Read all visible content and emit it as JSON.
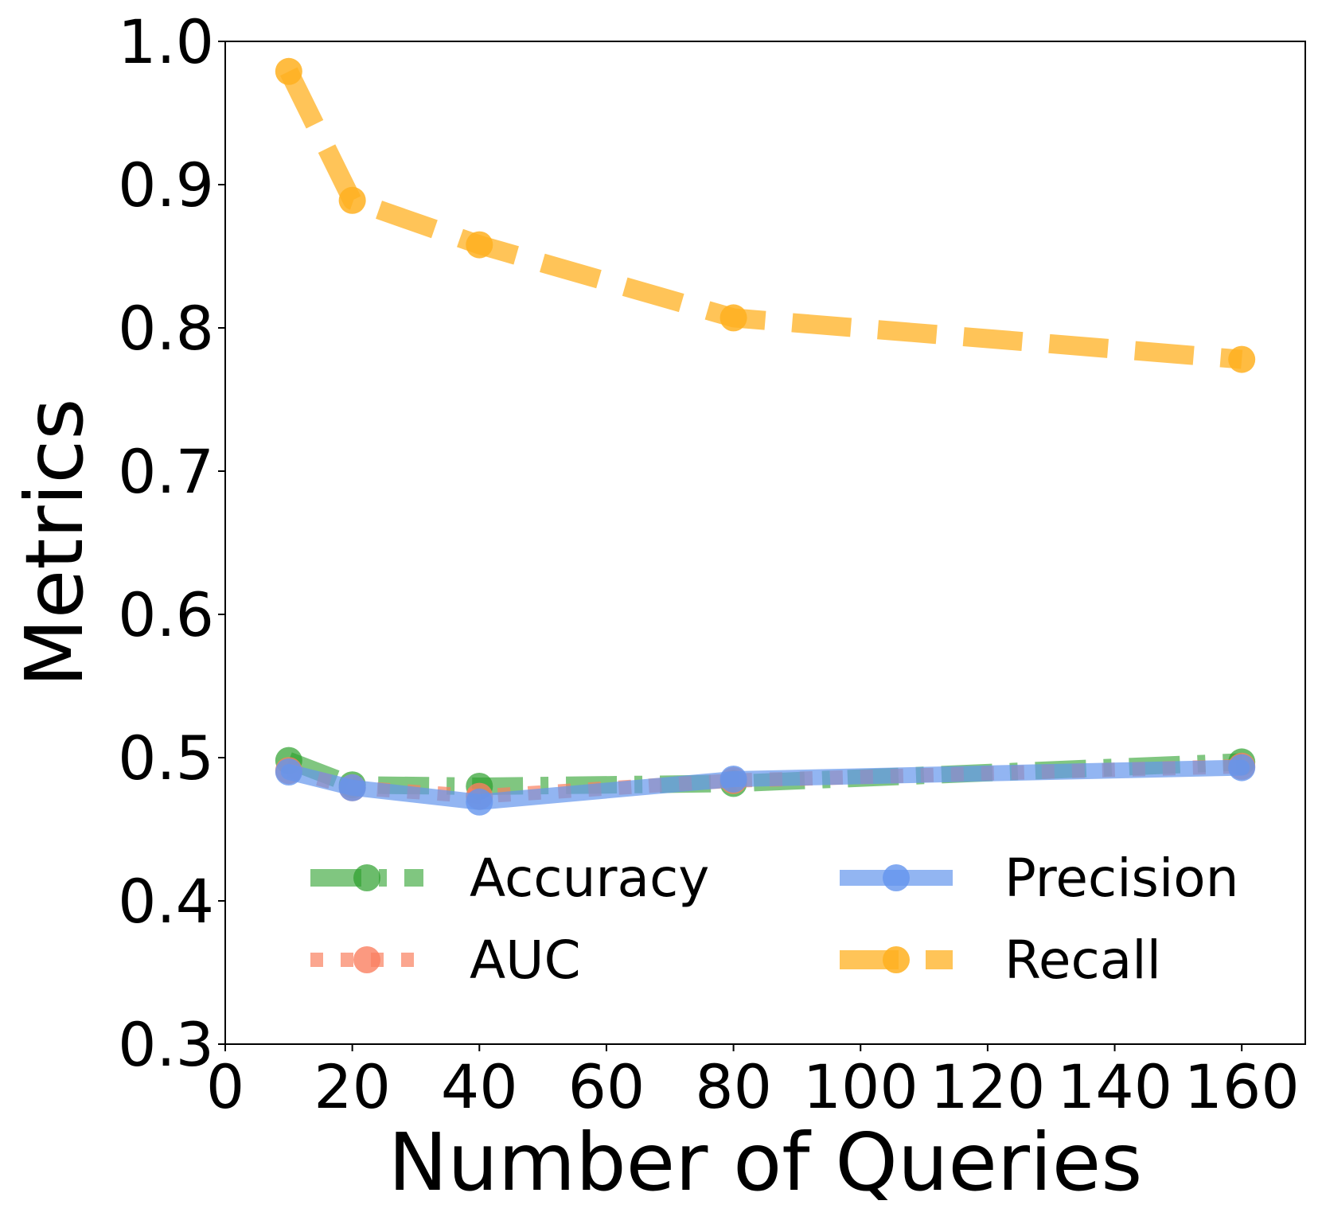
{
  "chart_data": {
    "type": "line",
    "title": "",
    "xlabel": "Number of Queries",
    "ylabel": "Metrics",
    "xlim": [
      0,
      170
    ],
    "ylim": [
      0.3,
      1.0
    ],
    "xticks": [
      0,
      20,
      40,
      60,
      80,
      100,
      120,
      140,
      160
    ],
    "xtick_labels": [
      "0",
      "20",
      "40",
      "60",
      "80",
      "100",
      "120",
      "140",
      "160"
    ],
    "yticks": [
      0.3,
      0.4,
      0.5,
      0.6,
      0.7,
      0.8,
      0.9,
      1.0
    ],
    "ytick_labels": [
      "0.3",
      "0.4",
      "0.5",
      "0.6",
      "0.7",
      "0.8",
      "0.9",
      "1.0"
    ],
    "grid": false,
    "legend_position": "lower-center, 2 columns",
    "x": [
      10,
      20,
      40,
      80,
      160
    ],
    "series": [
      {
        "name": "Accuracy",
        "color": "#2ca02c",
        "linestyle": "dashdot",
        "values": [
          0.498,
          0.481,
          0.48,
          0.482,
          0.497
        ]
      },
      {
        "name": "AUC",
        "color": "#fa8060",
        "linestyle": "dotted",
        "values": [
          0.491,
          0.479,
          0.473,
          0.484,
          0.494
        ]
      },
      {
        "name": "Precision",
        "color": "#6495ed",
        "linestyle": "solid",
        "values": [
          0.49,
          0.479,
          0.469,
          0.485,
          0.493
        ]
      },
      {
        "name": "Recall",
        "color": "#ffb020",
        "linestyle": "dashed",
        "values": [
          0.979,
          0.889,
          0.858,
          0.807,
          0.778
        ]
      }
    ]
  }
}
